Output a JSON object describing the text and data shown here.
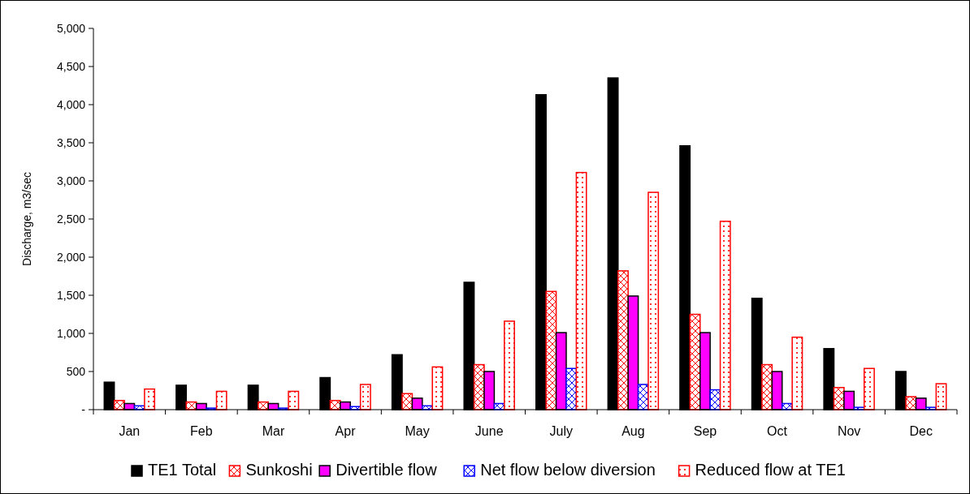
{
  "chart_data": {
    "type": "bar",
    "ylabel": "Discharge, m3/sec",
    "categories": [
      "Jan",
      "Feb",
      "Mar",
      "Apr",
      "May",
      "June",
      "July",
      "Aug",
      "Sep",
      "Oct",
      "Nov",
      "Dec"
    ],
    "series": [
      {
        "name": "TE1 Total",
        "color": "#000000",
        "values": [
          360,
          320,
          320,
          420,
          720,
          1670,
          4130,
          4350,
          3460,
          1460,
          800,
          500
        ]
      },
      {
        "name": "Sunkoshi",
        "color": "#ff0000",
        "values": [
          120,
          100,
          100,
          120,
          210,
          590,
          1550,
          1820,
          1250,
          590,
          290,
          170
        ]
      },
      {
        "name": "Divertible flow",
        "color": "#ff00ff",
        "values": [
          80,
          80,
          80,
          100,
          150,
          500,
          1010,
          1490,
          1010,
          500,
          240,
          150
        ]
      },
      {
        "name": "Net flow below diversion",
        "color": "#0000ff",
        "values": [
          50,
          20,
          20,
          40,
          50,
          80,
          540,
          330,
          260,
          80,
          30,
          30
        ]
      },
      {
        "name": "Reduced flow at TE1",
        "color": "#ff0000",
        "values": [
          270,
          240,
          240,
          330,
          560,
          1160,
          3110,
          2850,
          2470,
          950,
          540,
          340
        ]
      }
    ],
    "ylim": [
      0,
      5000
    ],
    "yticks": [
      {
        "value": 0,
        "label": "-"
      },
      500,
      {
        "value": 1000,
        "label": "1,000"
      },
      {
        "value": 1500,
        "label": "1,500"
      },
      {
        "value": 2000,
        "label": "2,000"
      },
      {
        "value": 2500,
        "label": "2,500"
      },
      {
        "value": 3000,
        "label": "3,000"
      },
      {
        "value": 3500,
        "label": "3,500"
      },
      {
        "value": 4000,
        "label": "4,000"
      },
      {
        "value": 4500,
        "label": "4,500"
      },
      {
        "value": 5000,
        "label": "5,000"
      }
    ],
    "grid": false,
    "legend": "bottom"
  }
}
